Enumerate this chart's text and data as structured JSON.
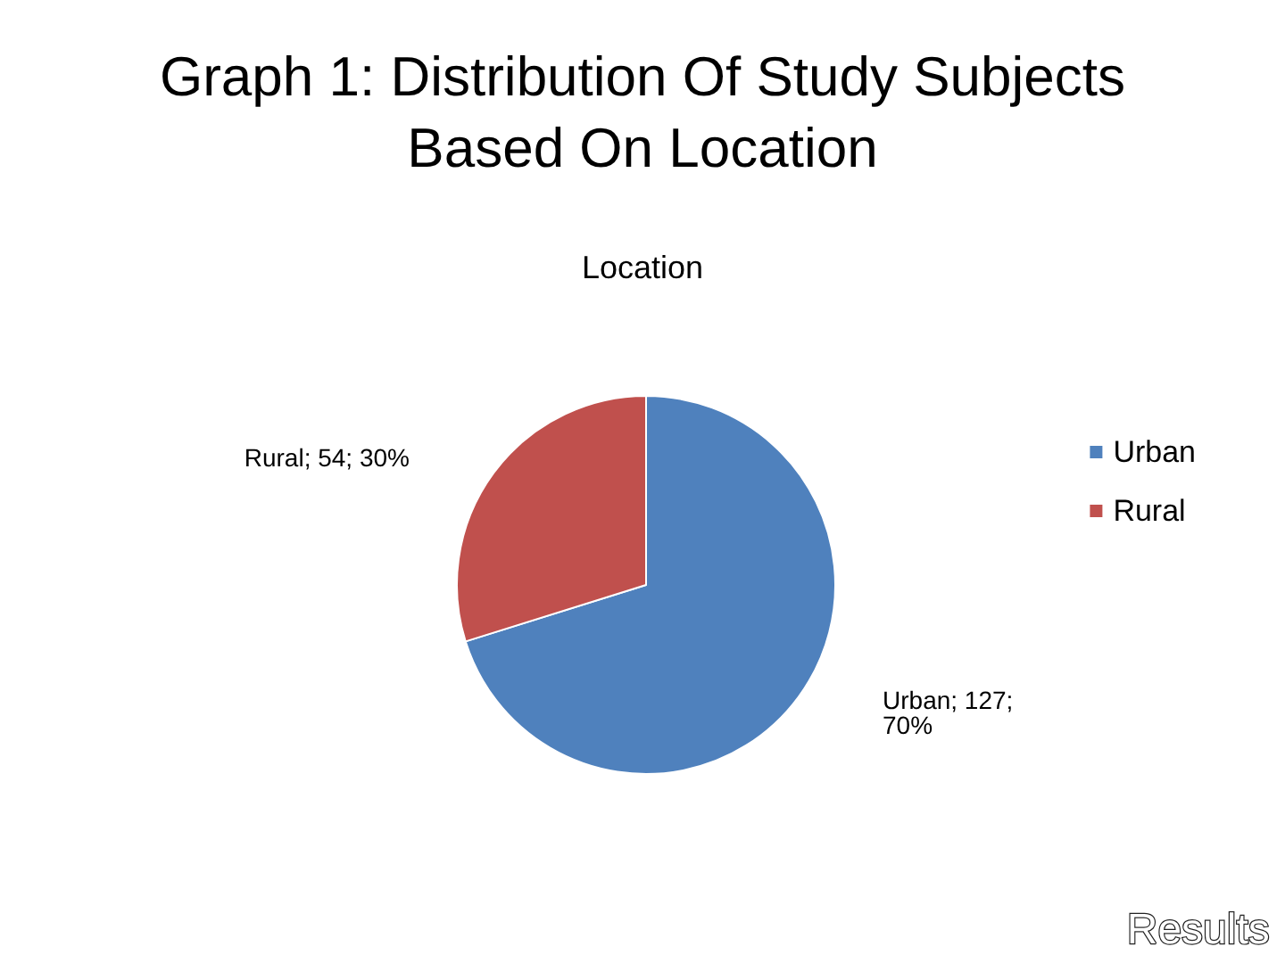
{
  "chart_data": {
    "type": "pie",
    "title": "Graph 1: Distribution Of Study Subjects\nBased On Location",
    "subtitle": "Location",
    "categories": [
      "Urban",
      "Rural"
    ],
    "values": [
      127,
      54
    ],
    "colors": [
      "#4f81bd",
      "#c0504d"
    ],
    "value_labels": [
      "Urban; 127;\n70%",
      "Rural; 54; 30%"
    ],
    "legend": "right",
    "annotations": [
      "Results"
    ]
  }
}
